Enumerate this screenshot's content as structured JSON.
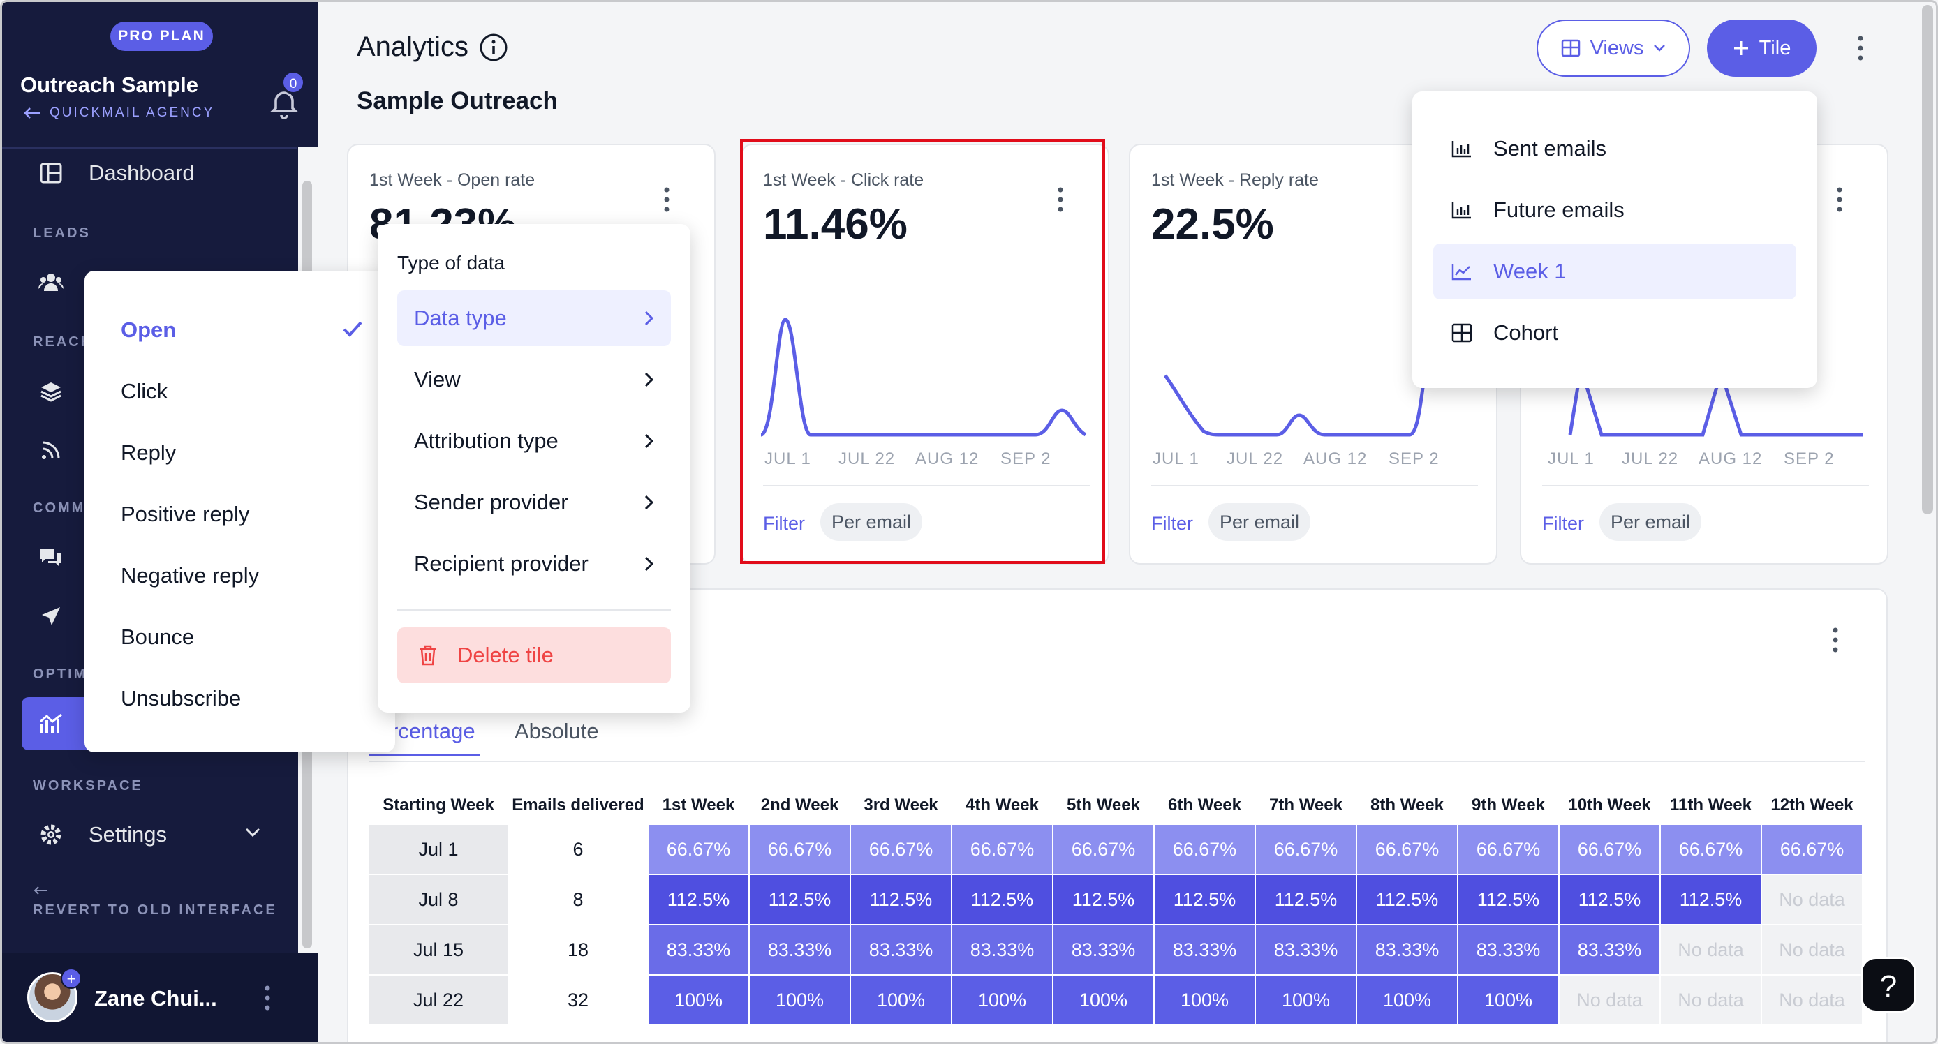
{
  "sidebar": {
    "plan_badge": "PRO PLAN",
    "account_name": "Outreach Sample",
    "account_sub": "QUICKMAIL AGENCY",
    "notification_count": "0",
    "dashboard": "Dashboard",
    "sections": {
      "leads": "LEADS",
      "reach": "REACH",
      "comm": "COMM",
      "optim": "OPTIM",
      "workspace": "WORKSPACE"
    },
    "leads_item": "L",
    "reach_items": [
      "C",
      "C"
    ],
    "comm_items": [
      "C",
      "C"
    ],
    "analytics_item": "A",
    "settings": "Settings",
    "revert": "REVERT TO OLD INTERFACE",
    "user_name": "Zane Chui..."
  },
  "header": {
    "title": "Analytics",
    "subtitle": "Sample Outreach",
    "views_label": "Views",
    "tile_label": "Tile"
  },
  "cards": [
    {
      "title": "1st Week - Open rate",
      "value": "81.23%",
      "filter": "Filter",
      "per_email": "Per email"
    },
    {
      "title": "1st Week - Click rate",
      "value": "11.46%",
      "x_labels": [
        "JUL 1",
        "JUL 22",
        "AUG 12",
        "SEP 2"
      ],
      "filter": "Filter",
      "per_email": "Per email"
    },
    {
      "title": "1st Week - Reply rate",
      "value": "22.5%",
      "x_labels": [
        "JUL 1",
        "JUL 22",
        "AUG 12",
        "SEP 2"
      ],
      "filter": "Filter",
      "per_email": "Per email"
    },
    {
      "x_labels": [
        "JUL 1",
        "JUL 22",
        "AUG 12",
        "SEP 2"
      ],
      "filter": "Filter",
      "per_email": "Per email"
    }
  ],
  "data_type_menu": {
    "options": [
      "Open",
      "Click",
      "Reply",
      "Positive reply",
      "Negative reply",
      "Bounce",
      "Unsubscribe"
    ],
    "selected": "Open"
  },
  "tile_menu": {
    "heading": "Type of data",
    "items": [
      "Data type",
      "View",
      "Attribution type",
      "Sender provider",
      "Recipient provider"
    ],
    "delete": "Delete tile"
  },
  "views_menu": {
    "items": [
      {
        "label": "Sent emails",
        "icon": "bar-chart-icon"
      },
      {
        "label": "Future emails",
        "icon": "bar-chart-icon"
      },
      {
        "label": "Week 1",
        "icon": "line-chart-icon"
      },
      {
        "label": "Cohort",
        "icon": "table-icon"
      }
    ],
    "active": "Week 1"
  },
  "cohort": {
    "tabs": [
      "rcentage",
      "Absolute"
    ],
    "headers": [
      "Starting Week",
      "Emails delivered",
      "1st Week",
      "2nd Week",
      "3rd Week",
      "4th Week",
      "5th Week",
      "6th Week",
      "7th Week",
      "8th Week",
      "9th Week",
      "10th Week",
      "11th Week",
      "12th Week"
    ],
    "rows": [
      {
        "week": "Jul 1",
        "delivered": "6",
        "values": [
          "66.67%",
          "66.67%",
          "66.67%",
          "66.67%",
          "66.67%",
          "66.67%",
          "66.67%",
          "66.67%",
          "66.67%",
          "66.67%",
          "66.67%",
          "66.67%"
        ]
      },
      {
        "week": "Jul 8",
        "delivered": "8",
        "values": [
          "112.5%",
          "112.5%",
          "112.5%",
          "112.5%",
          "112.5%",
          "112.5%",
          "112.5%",
          "112.5%",
          "112.5%",
          "112.5%",
          "112.5%",
          "No data"
        ]
      },
      {
        "week": "Jul 15",
        "delivered": "18",
        "values": [
          "83.33%",
          "83.33%",
          "83.33%",
          "83.33%",
          "83.33%",
          "83.33%",
          "83.33%",
          "83.33%",
          "83.33%",
          "83.33%",
          "No data",
          "No data"
        ]
      },
      {
        "week": "Jul 22",
        "delivered": "32",
        "values": [
          "100%",
          "100%",
          "100%",
          "100%",
          "100%",
          "100%",
          "100%",
          "100%",
          "100%",
          "No data",
          "No data",
          "No data"
        ]
      }
    ],
    "colors": {
      "66.67%": "#8c8ff0",
      "112.5%": "#4f4fe0",
      "83.33%": "#6a6ce8",
      "100%": "#5b5ee6"
    }
  },
  "help_label": "?"
}
